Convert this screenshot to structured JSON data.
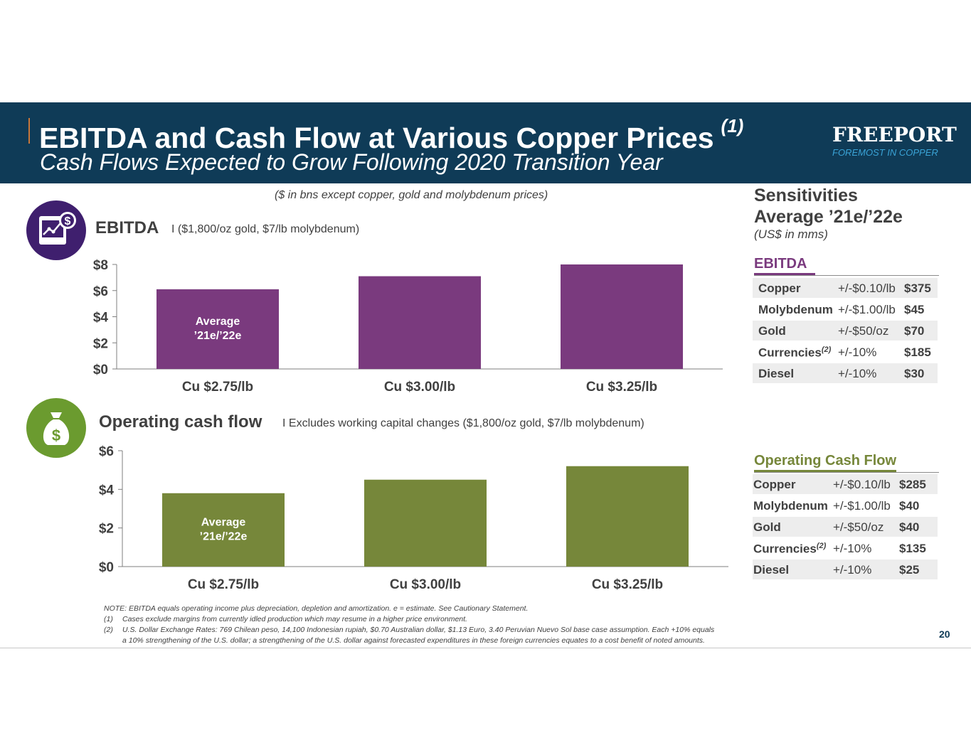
{
  "header": {
    "title": "EBITDA and Cash Flow at Various Copper Prices",
    "title_note": "(1)",
    "subtitle": "Cash Flows Expected to Grow Following 2020 Transition Year",
    "logo_name": "FREEPORT",
    "logo_tagline": "FOREMOST IN COPPER"
  },
  "unit_note": "($ in bns except copper, gold and molybdenum prices)",
  "ebitda_section": {
    "title": "EBITDA",
    "subtitle": "I ($1,800/oz gold, $7/lb molybdenum)",
    "icon": "dollar-chart-icon"
  },
  "ocf_section": {
    "title": "Operating cash flow",
    "subtitle": "I Excludes working capital changes ($1,800/oz gold, $7/lb molybdenum)",
    "icon": "money-bag-icon"
  },
  "chart_data": [
    {
      "type": "bar",
      "title": "EBITDA",
      "categories": [
        "Cu $2.75/lb",
        "Cu $3.00/lb",
        "Cu $3.25/lb"
      ],
      "values": [
        6.1,
        7.1,
        8.0
      ],
      "ylim": [
        0,
        8
      ],
      "yticks": [
        "$0",
        "$2",
        "$4",
        "$6",
        "$8"
      ],
      "ytick_values": [
        0,
        2,
        4,
        6,
        8
      ],
      "bar_annotation": [
        "Average",
        "’21e/’22e"
      ],
      "color": "#7a3a7e",
      "grid": false
    },
    {
      "type": "bar",
      "title": "Operating cash flow",
      "categories": [
        "Cu $2.75/lb",
        "Cu $3.00/lb",
        "Cu $3.25/lb"
      ],
      "values": [
        3.8,
        4.5,
        5.2
      ],
      "ylim": [
        0,
        6
      ],
      "yticks": [
        "$0",
        "$2",
        "$4",
        "$6"
      ],
      "ytick_values": [
        0,
        2,
        4,
        6
      ],
      "bar_annotation": [
        "Average",
        "’21e/’22e"
      ],
      "color": "#76873a",
      "grid": false
    }
  ],
  "sensitivities": {
    "title_line1": "Sensitivities",
    "title_line2": "Average ’21e/’22e",
    "unit": "(US$ in mms)",
    "ebitda": {
      "heading": "EBITDA",
      "color": "#7a3a7e",
      "rows": [
        {
          "item": "Copper",
          "note": "",
          "change": "+/-$0.10/lb",
          "value": "$375"
        },
        {
          "item": "Molybdenum",
          "note": "",
          "change": "+/-$1.00/lb",
          "value": "$45"
        },
        {
          "item": "Gold",
          "note": "",
          "change": "+/-$50/oz",
          "value": "$70"
        },
        {
          "item": "Currencies",
          "note": "(2)",
          "change": "+/-10%",
          "value": "$185"
        },
        {
          "item": "Diesel",
          "note": "",
          "change": "+/-10%",
          "value": "$30"
        }
      ]
    },
    "ocf": {
      "heading": "Operating Cash Flow",
      "color": "#76873a",
      "rows": [
        {
          "item": "Copper",
          "note": "",
          "change": "+/-$0.10/lb",
          "value": "$285"
        },
        {
          "item": "Molybdenum",
          "note": "",
          "change": "+/-$1.00/lb",
          "value": "$40"
        },
        {
          "item": "Gold",
          "note": "",
          "change": "+/-$50/oz",
          "value": "$40"
        },
        {
          "item": "Currencies",
          "note": "(2)",
          "change": "+/-10%",
          "value": "$135"
        },
        {
          "item": "Diesel",
          "note": "",
          "change": "+/-10%",
          "value": "$25"
        }
      ]
    }
  },
  "footnotes": {
    "note": "NOTE: EBITDA equals operating income plus depreciation, depletion and amortization. e = estimate. See Cautionary Statement.",
    "fn1_num": "(1)",
    "fn1": "Cases exclude margins from currently idled production which may resume in a higher price environment.",
    "fn2_num": "(2)",
    "fn2_line1": "U.S. Dollar Exchange Rates: 769 Chilean peso, 14,100 Indonesian rupiah, $0.70 Australian dollar, $1.13 Euro, 3.40 Peruvian Nuevo Sol base case assumption. Each +10% equals",
    "fn2_line2": "a 10% strengthening of the U.S. dollar; a strengthening of the U.S. dollar against forecasted expenditures in these foreign currencies equates to a cost benefit of noted amounts."
  },
  "page_number": "20"
}
